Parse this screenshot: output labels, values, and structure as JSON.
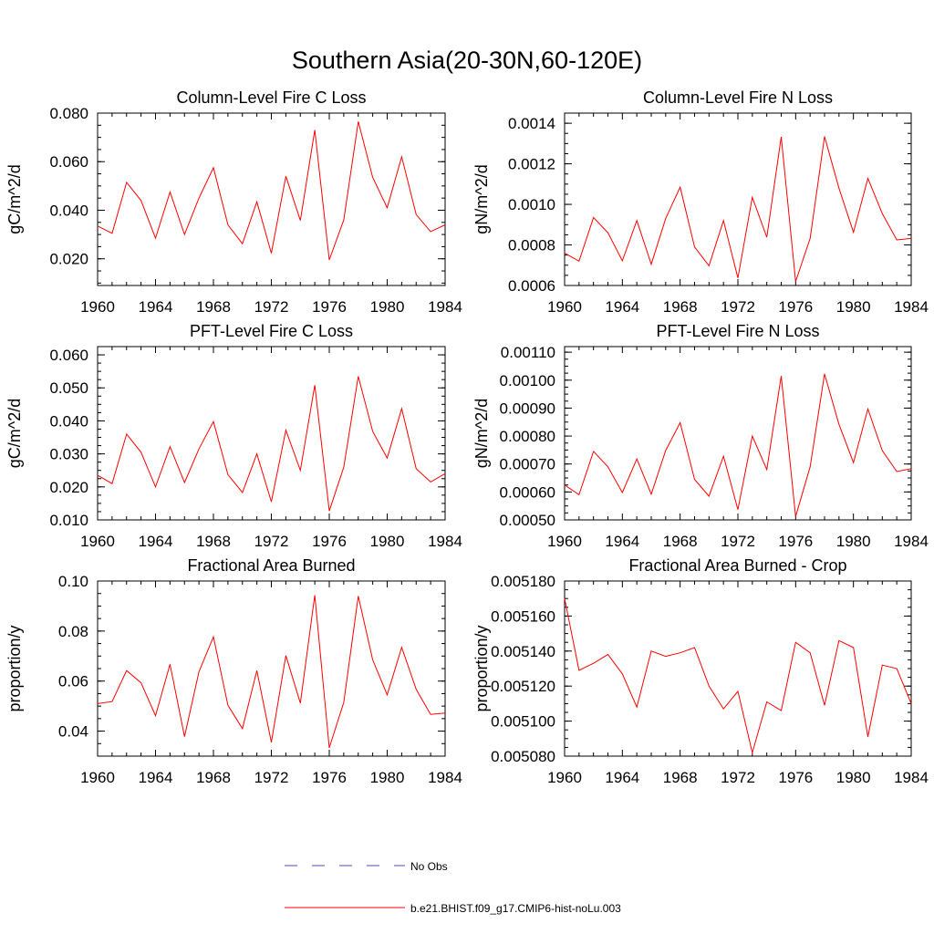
{
  "figure": {
    "title": "Southern Asia(20-30N,60-120E)"
  },
  "colors": {
    "model": "#ff0000",
    "obs": "#4b4bb4",
    "axis": "#000000"
  },
  "legend": {
    "placement": "bottom-center",
    "items": [
      {
        "label": "No Obs",
        "style": "dashed",
        "color": "#4b4bb4"
      },
      {
        "label": "b.e21.BHIST.f09_g17.CMIP6-hist-noLu.003",
        "style": "solid",
        "color": "#ff0000"
      }
    ]
  },
  "chart_data": [
    {
      "type": "line",
      "title": "Column-Level Fire C Loss",
      "ylabel": "gC/m^2/d",
      "xlabel": "",
      "xlim": [
        1960,
        1984
      ],
      "ylim": [
        0.009,
        0.08
      ],
      "xticks": [
        "1960",
        "1964",
        "1968",
        "1972",
        "1976",
        "1980",
        "1984"
      ],
      "yticks": [
        {
          "v": 0.02,
          "label": "0.020"
        },
        {
          "v": 0.04,
          "label": "0.040"
        },
        {
          "v": 0.06,
          "label": "0.060"
        },
        {
          "v": 0.08,
          "label": "0.080"
        }
      ],
      "yminor": 0.005,
      "x": [
        1960,
        1961,
        1962,
        1963,
        1964,
        1965,
        1966,
        1967,
        1968,
        1969,
        1970,
        1971,
        1972,
        1973,
        1974,
        1975,
        1976,
        1977,
        1978,
        1979,
        1980,
        1981,
        1982,
        1983,
        1984
      ],
      "series": [
        {
          "name": "b.e21.BHIST.f09_g17.CMIP6-hist-noLu.003",
          "values": [
            0.0335,
            0.0305,
            0.0515,
            0.044,
            0.0285,
            0.0475,
            0.03,
            0.045,
            0.0575,
            0.034,
            0.0262,
            0.0435,
            0.0223,
            0.054,
            0.0358,
            0.073,
            0.0195,
            0.036,
            0.0765,
            0.0535,
            0.041,
            0.062,
            0.0382,
            0.0312,
            0.034
          ]
        }
      ]
    },
    {
      "type": "line",
      "title": "Column-Level Fire N Loss",
      "ylabel": "gN/m^2/d",
      "xlabel": "",
      "xlim": [
        1960,
        1984
      ],
      "ylim": [
        0.0006,
        0.00145
      ],
      "xticks": [
        "1960",
        "1964",
        "1968",
        "1972",
        "1976",
        "1980",
        "1984"
      ],
      "yticks": [
        {
          "v": 0.0006,
          "label": "0.0006"
        },
        {
          "v": 0.0008,
          "label": "0.0008"
        },
        {
          "v": 0.001,
          "label": "0.0010"
        },
        {
          "v": 0.0012,
          "label": "0.0012"
        },
        {
          "v": 0.0014,
          "label": "0.0014"
        }
      ],
      "yminor": 5e-05,
      "x": [
        1960,
        1961,
        1962,
        1963,
        1964,
        1965,
        1966,
        1967,
        1968,
        1969,
        1970,
        1971,
        1972,
        1973,
        1974,
        1975,
        1976,
        1977,
        1978,
        1979,
        1980,
        1981,
        1982,
        1983,
        1984
      ],
      "series": [
        {
          "name": "b.e21.BHIST.f09_g17.CMIP6-hist-noLu.003",
          "values": [
            0.00076,
            0.00072,
            0.000935,
            0.00086,
            0.000722,
            0.00092,
            0.000705,
            0.00093,
            0.001085,
            0.00079,
            0.000697,
            0.00092,
            0.000637,
            0.001035,
            0.000838,
            0.001333,
            0.00062,
            0.000832,
            0.001335,
            0.00108,
            0.000862,
            0.001128,
            0.000955,
            0.000825,
            0.000832
          ]
        }
      ]
    },
    {
      "type": "line",
      "title": "PFT-Level Fire C Loss",
      "ylabel": "gC/m^2/d",
      "xlabel": "",
      "xlim": [
        1960,
        1984
      ],
      "ylim": [
        0.01,
        0.0625
      ],
      "xticks": [
        "1960",
        "1964",
        "1968",
        "1972",
        "1976",
        "1980",
        "1984"
      ],
      "yticks": [
        {
          "v": 0.01,
          "label": "0.010"
        },
        {
          "v": 0.02,
          "label": "0.020"
        },
        {
          "v": 0.03,
          "label": "0.030"
        },
        {
          "v": 0.04,
          "label": "0.040"
        },
        {
          "v": 0.05,
          "label": "0.050"
        },
        {
          "v": 0.06,
          "label": "0.060"
        }
      ],
      "yminor": 0.0025,
      "x": [
        1960,
        1961,
        1962,
        1963,
        1964,
        1965,
        1966,
        1967,
        1968,
        1969,
        1970,
        1971,
        1972,
        1973,
        1974,
        1975,
        1976,
        1977,
        1978,
        1979,
        1980,
        1981,
        1982,
        1983,
        1984
      ],
      "series": [
        {
          "name": "b.e21.BHIST.f09_g17.CMIP6-hist-noLu.003",
          "values": [
            0.0235,
            0.021,
            0.036,
            0.0305,
            0.02,
            0.0322,
            0.0213,
            0.0315,
            0.0398,
            0.0237,
            0.0183,
            0.03,
            0.0155,
            0.0372,
            0.025,
            0.0508,
            0.0127,
            0.026,
            0.0535,
            0.0368,
            0.0287,
            0.0437,
            0.0255,
            0.0215,
            0.024
          ]
        }
      ]
    },
    {
      "type": "line",
      "title": "PFT-Level Fire N Loss",
      "ylabel": "gN/m^2/d",
      "xlabel": "",
      "xlim": [
        1960,
        1984
      ],
      "ylim": [
        0.0005,
        0.00112
      ],
      "xticks": [
        "1960",
        "1964",
        "1968",
        "1972",
        "1976",
        "1980",
        "1984"
      ],
      "yticks": [
        {
          "v": 0.0005,
          "label": "0.00050"
        },
        {
          "v": 0.0006,
          "label": "0.00060"
        },
        {
          "v": 0.0007,
          "label": "0.00070"
        },
        {
          "v": 0.0008,
          "label": "0.00080"
        },
        {
          "v": 0.0009,
          "label": "0.00090"
        },
        {
          "v": 0.001,
          "label": "0.00100"
        },
        {
          "v": 0.0011,
          "label": "0.00110"
        }
      ],
      "yminor": 2.5e-05,
      "x": [
        1960,
        1961,
        1962,
        1963,
        1964,
        1965,
        1966,
        1967,
        1968,
        1969,
        1970,
        1971,
        1972,
        1973,
        1974,
        1975,
        1976,
        1977,
        1978,
        1979,
        1980,
        1981,
        1982,
        1983,
        1984
      ],
      "series": [
        {
          "name": "b.e21.BHIST.f09_g17.CMIP6-hist-noLu.003",
          "values": [
            0.000625,
            0.00059,
            0.000745,
            0.00069,
            0.000598,
            0.000718,
            0.000592,
            0.000748,
            0.000848,
            0.000645,
            0.000585,
            0.000728,
            0.000537,
            0.0008,
            0.00068,
            0.001015,
            0.000512,
            0.00069,
            0.001022,
            0.000842,
            0.000705,
            0.000897,
            0.000748,
            0.000673,
            0.000683
          ]
        }
      ]
    },
    {
      "type": "line",
      "title": "Fractional Area Burned",
      "ylabel": "proportion/y",
      "xlabel": "",
      "xlim": [
        1960,
        1984
      ],
      "ylim": [
        0.03,
        0.1
      ],
      "xticks": [
        "1960",
        "1964",
        "1968",
        "1972",
        "1976",
        "1980",
        "1984"
      ],
      "yticks": [
        {
          "v": 0.04,
          "label": "0.04"
        },
        {
          "v": 0.06,
          "label": "0.06"
        },
        {
          "v": 0.08,
          "label": "0.08"
        },
        {
          "v": 0.1,
          "label": "0.10"
        }
      ],
      "yminor": 0.005,
      "x": [
        1960,
        1961,
        1962,
        1963,
        1964,
        1965,
        1966,
        1967,
        1968,
        1969,
        1970,
        1971,
        1972,
        1973,
        1974,
        1975,
        1976,
        1977,
        1978,
        1979,
        1980,
        1981,
        1982,
        1983,
        1984
      ],
      "series": [
        {
          "name": "b.e21.BHIST.f09_g17.CMIP6-hist-noLu.003",
          "values": [
            0.051,
            0.0518,
            0.0642,
            0.0593,
            0.0462,
            0.0667,
            0.0378,
            0.0637,
            0.0777,
            0.0503,
            0.041,
            0.0642,
            0.0355,
            0.0702,
            0.0512,
            0.0943,
            0.0333,
            0.0515,
            0.094,
            0.0685,
            0.0545,
            0.0735,
            0.0567,
            0.0467,
            0.0472
          ]
        }
      ]
    },
    {
      "type": "line",
      "title": "Fractional Area Burned - Crop",
      "ylabel": "proportion/y",
      "xlabel": "",
      "xlim": [
        1960,
        1984
      ],
      "ylim": [
        0.00508,
        0.00518
      ],
      "xticks": [
        "1960",
        "1964",
        "1968",
        "1972",
        "1976",
        "1980",
        "1984"
      ],
      "yticks": [
        {
          "v": 0.00508,
          "label": "0.005080"
        },
        {
          "v": 0.0051,
          "label": "0.005100"
        },
        {
          "v": 0.00512,
          "label": "0.005120"
        },
        {
          "v": 0.00514,
          "label": "0.005140"
        },
        {
          "v": 0.00516,
          "label": "0.005160"
        },
        {
          "v": 0.00518,
          "label": "0.005180"
        }
      ],
      "yminor": 5e-06,
      "x": [
        1960,
        1961,
        1962,
        1963,
        1964,
        1965,
        1966,
        1967,
        1968,
        1969,
        1970,
        1971,
        1972,
        1973,
        1974,
        1975,
        1976,
        1977,
        1978,
        1979,
        1980,
        1981,
        1982,
        1983,
        1984
      ],
      "series": [
        {
          "name": "b.e21.BHIST.f09_g17.CMIP6-hist-noLu.003",
          "values": [
            0.00517,
            0.005129,
            0.005133,
            0.005138,
            0.005127,
            0.005108,
            0.00514,
            0.005137,
            0.005139,
            0.005142,
            0.00512,
            0.005107,
            0.005117,
            0.005082,
            0.005111,
            0.005106,
            0.005145,
            0.005139,
            0.005109,
            0.005146,
            0.005142,
            0.005091,
            0.005132,
            0.00513,
            0.00511
          ]
        }
      ]
    }
  ]
}
